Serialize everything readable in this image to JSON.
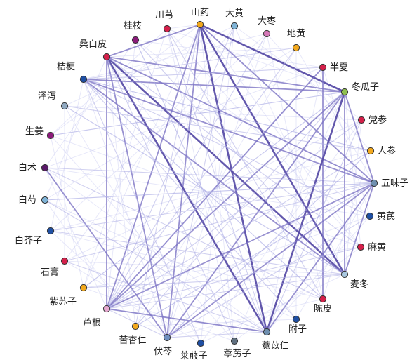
{
  "nodes": [
    {
      "id": "shanyao",
      "label": "山药",
      "color": "#f2a81d"
    },
    {
      "id": "dahuang",
      "label": "大黄",
      "color": "#7fb3d6"
    },
    {
      "id": "dazao",
      "label": "大枣",
      "color": "#d477b8"
    },
    {
      "id": "dihuang",
      "label": "地黄",
      "color": "#f2a81d"
    },
    {
      "id": "banxia",
      "label": "半夏",
      "color": "#d4204a"
    },
    {
      "id": "dongguazi",
      "label": "冬瓜子",
      "color": "#8fbf4f"
    },
    {
      "id": "dangshen",
      "label": "党参",
      "color": "#d4204a"
    },
    {
      "id": "renshen",
      "label": "人参",
      "color": "#f2a81d"
    },
    {
      "id": "wuweizi",
      "label": "五味子",
      "color": "#6f8faf"
    },
    {
      "id": "huangqi",
      "label": "黄芪",
      "color": "#1f4fa3"
    },
    {
      "id": "mahuang",
      "label": "麻黄",
      "color": "#d4204a"
    },
    {
      "id": "maidong",
      "label": "麦冬",
      "color": "#a9c8e0"
    },
    {
      "id": "chenpi",
      "label": "陈皮",
      "color": "#d4204a"
    },
    {
      "id": "fuzi",
      "label": "附子",
      "color": "#1f4fa3"
    },
    {
      "id": "yiyiren",
      "label": "薏苡仁",
      "color": "#6f8faf"
    },
    {
      "id": "tinglizi",
      "label": "葶苈子",
      "color": "#5f6f7f"
    },
    {
      "id": "laifuzi",
      "label": "莱菔子",
      "color": "#1f4fa3"
    },
    {
      "id": "fuling",
      "label": "伏苓",
      "color": "#6f8fc0"
    },
    {
      "id": "kuxingren",
      "label": "苦杏仁",
      "color": "#f2a81d"
    },
    {
      "id": "lugen",
      "label": "芦根",
      "color": "#e6a8d0"
    },
    {
      "id": "zisuzi",
      "label": "紫苏子",
      "color": "#f2a81d"
    },
    {
      "id": "shigao",
      "label": "石膏",
      "color": "#d4204a"
    },
    {
      "id": "baijiezi",
      "label": "白芥子",
      "color": "#1f4fa3"
    },
    {
      "id": "baishao",
      "label": "白芍",
      "color": "#7fb3d6"
    },
    {
      "id": "baizhu",
      "label": "白术",
      "color": "#5a1a6a"
    },
    {
      "id": "shengjiang",
      "label": "生姜",
      "color": "#8a1a7a"
    },
    {
      "id": "zexie",
      "label": "泽泻",
      "color": "#8fa8c0"
    },
    {
      "id": "jiegeng",
      "label": "桔梗",
      "color": "#1f4fa3"
    },
    {
      "id": "sangbaipi",
      "label": "桑白皮",
      "color": "#d4204a"
    },
    {
      "id": "guizhi",
      "label": "桂枝",
      "color": "#8a1a7a"
    },
    {
      "id": "chuanxiong",
      "label": "川芎",
      "color": "#d4204a"
    }
  ],
  "edges": [
    {
      "source": "shanyao",
      "target": "maidong",
      "weight": 3
    },
    {
      "source": "shanyao",
      "target": "yiyiren",
      "weight": 3
    },
    {
      "source": "shanyao",
      "target": "lugen",
      "weight": 2
    },
    {
      "source": "shanyao",
      "target": "fuling",
      "weight": 2
    },
    {
      "source": "shanyao",
      "target": "dongguazi",
      "weight": 3
    },
    {
      "source": "shanyao",
      "target": "sangbaipi",
      "weight": 2
    },
    {
      "source": "shanyao",
      "target": "wuweizi",
      "weight": 2
    },
    {
      "source": "sangbaipi",
      "target": "maidong",
      "weight": 3
    },
    {
      "source": "sangbaipi",
      "target": "yiyiren",
      "weight": 3
    },
    {
      "source": "sangbaipi",
      "target": "fuling",
      "weight": 2
    },
    {
      "source": "sangbaipi",
      "target": "lugen",
      "weight": 2
    },
    {
      "source": "sangbaipi",
      "target": "dongguazi",
      "weight": 2
    },
    {
      "source": "sangbaipi",
      "target": "wuweizi",
      "weight": 2
    },
    {
      "source": "jiegeng",
      "target": "dongguazi",
      "weight": 2
    },
    {
      "source": "jiegeng",
      "target": "wuweizi",
      "weight": 2
    },
    {
      "source": "jiegeng",
      "target": "maidong",
      "weight": 2
    },
    {
      "source": "jiegeng",
      "target": "renshen",
      "weight": 1
    },
    {
      "source": "baizhu",
      "target": "fuling",
      "weight": 2
    },
    {
      "source": "baizhu",
      "target": "wuweizi",
      "weight": 1
    },
    {
      "source": "banxia",
      "target": "chenpi",
      "weight": 2
    },
    {
      "source": "banxia",
      "target": "lugen",
      "weight": 2
    },
    {
      "source": "dongguazi",
      "target": "yiyiren",
      "weight": 3
    },
    {
      "source": "dongguazi",
      "target": "lugen",
      "weight": 2
    },
    {
      "source": "dongguazi",
      "target": "fuling",
      "weight": 2
    },
    {
      "source": "dongguazi",
      "target": "maidong",
      "weight": 2
    },
    {
      "source": "dongguazi",
      "target": "wuweizi",
      "weight": 2
    },
    {
      "source": "wuweizi",
      "target": "yiyiren",
      "weight": 2
    },
    {
      "source": "wuweizi",
      "target": "fuling",
      "weight": 2
    },
    {
      "source": "wuweizi",
      "target": "maidong",
      "weight": 2
    },
    {
      "source": "wuweizi",
      "target": "lugen",
      "weight": 2
    },
    {
      "source": "maidong",
      "target": "lugen",
      "weight": 1
    },
    {
      "source": "yiyiren",
      "target": "lugen",
      "weight": 2
    },
    {
      "source": "yiyiren",
      "target": "fuling",
      "weight": 1
    },
    {
      "source": "fuling",
      "target": "lugen",
      "weight": 1
    },
    {
      "source": "renshen",
      "target": "lugen",
      "weight": 1
    },
    {
      "source": "huangqi",
      "target": "fuling",
      "weight": 1
    },
    {
      "source": "mahuang",
      "target": "lugen",
      "weight": 1
    },
    {
      "source": "dangshen",
      "target": "yiyiren",
      "weight": 1
    },
    {
      "source": "shanyao",
      "target": "kuxingren",
      "weight": 1
    },
    {
      "source": "guizhi",
      "target": "maidong",
      "weight": 1
    },
    {
      "source": "chuanxiong",
      "target": "chenpi",
      "weight": 1
    },
    {
      "source": "zexie",
      "target": "maidong",
      "weight": 1
    },
    {
      "source": "shengjiang",
      "target": "dongguazi",
      "weight": 1
    },
    {
      "source": "baishao",
      "target": "yiyiren",
      "weight": 1
    },
    {
      "source": "dahuang",
      "target": "fuling",
      "weight": 1
    },
    {
      "source": "dazao",
      "target": "lugen",
      "weight": 1
    },
    {
      "source": "dihuang",
      "target": "jiegeng",
      "weight": 1
    },
    {
      "source": "kuxingren",
      "target": "wuweizi",
      "weight": 1
    },
    {
      "source": "zisuzi",
      "target": "dongguazi",
      "weight": 1
    },
    {
      "source": "baijiezi",
      "target": "maidong",
      "weight": 1
    },
    {
      "source": "shigao",
      "target": "wuweizi",
      "weight": 1
    },
    {
      "source": "laifuzi",
      "target": "jiegeng",
      "weight": 1
    },
    {
      "source": "tinglizi",
      "target": "sangbaipi",
      "weight": 1
    },
    {
      "source": "fuzi",
      "target": "jiegeng",
      "weight": 1
    },
    {
      "source": "chenpi",
      "target": "jiegeng",
      "weight": 1
    },
    {
      "source": "zexie",
      "target": "renshen",
      "weight": 1
    },
    {
      "source": "baishao",
      "target": "wuweizi",
      "weight": 1
    },
    {
      "source": "guizhi",
      "target": "yiyiren",
      "weight": 1
    },
    {
      "source": "dahuang",
      "target": "lugen",
      "weight": 1
    },
    {
      "source": "huangqi",
      "target": "jiegeng",
      "weight": 1
    },
    {
      "source": "mahuang",
      "target": "sangbaipi",
      "weight": 1
    },
    {
      "source": "renshen",
      "target": "fuling",
      "weight": 1
    },
    {
      "source": "dangshen",
      "target": "lugen",
      "weight": 1
    },
    {
      "source": "zisuzi",
      "target": "maidong",
      "weight": 1
    },
    {
      "source": "shigao",
      "target": "yiyiren",
      "weight": 1
    },
    {
      "source": "kuxingren",
      "target": "dongguazi",
      "weight": 1
    },
    {
      "source": "baijiezi",
      "target": "wuweizi",
      "weight": 1
    },
    {
      "source": "dihuang",
      "target": "lugen",
      "weight": 1
    },
    {
      "source": "chuanxiong",
      "target": "yiyiren",
      "weight": 1
    },
    {
      "source": "banxia",
      "target": "jiegeng",
      "weight": 1
    },
    {
      "source": "chenpi",
      "target": "baizhu",
      "weight": 1
    }
  ]
}
